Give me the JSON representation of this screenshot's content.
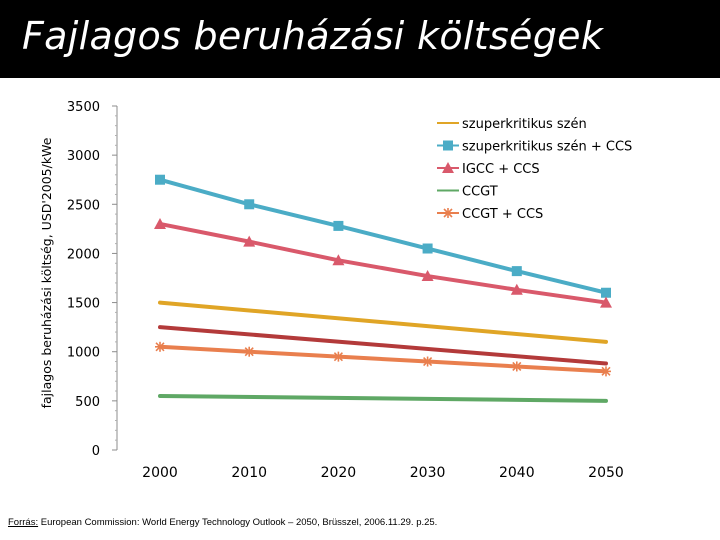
{
  "title": "Fajlagos beruházási költségek",
  "source": {
    "label": "Forrás:",
    "text": " European Commission: World Energy Technology Outlook – 2050, Brüsszel, 2006.11.29. p.25."
  },
  "chart_data": {
    "type": "line",
    "title": "",
    "xlabel": "",
    "ylabel": "fajlagos beruházási költség, USD'2005/kWe",
    "xlim": [
      2000,
      2050
    ],
    "ylim": [
      0,
      3500
    ],
    "x_ticks": [
      2000,
      2010,
      2020,
      2030,
      2040,
      2050
    ],
    "y_ticks": [
      0,
      500,
      1000,
      1500,
      2000,
      2500,
      3000,
      3500
    ],
    "grid": false,
    "legend_position": "top-right",
    "series": [
      {
        "name": "szuperkritikus szén",
        "color": "#e0a526",
        "marker": "none",
        "x": [
          2000,
          2050
        ],
        "values": [
          1500,
          1100
        ]
      },
      {
        "name": "szuperkritikus szén + CCS",
        "color": "#4bacc6",
        "marker": "square",
        "x": [
          2000,
          2010,
          2020,
          2030,
          2040,
          2050
        ],
        "values": [
          2750,
          2500,
          2280,
          2050,
          1820,
          1600
        ]
      },
      {
        "name": "IGCC + CCS",
        "color": "#d9596b",
        "marker": "triangle",
        "x": [
          2000,
          2010,
          2020,
          2030,
          2040,
          2050
        ],
        "values": [
          2300,
          2120,
          1930,
          1770,
          1630,
          1500
        ]
      },
      {
        "name": "CCGT",
        "color": "#5fa865",
        "marker": "none",
        "x": [
          2000,
          2050
        ],
        "values": [
          550,
          500
        ]
      },
      {
        "name": "CCGT + CCS",
        "color": "#e97f4e",
        "marker": "star",
        "x": [
          2000,
          2010,
          2020,
          2030,
          2040,
          2050
        ],
        "values": [
          1050,
          1000,
          950,
          900,
          850,
          800
        ]
      },
      {
        "name": "",
        "color": "#b33a3a",
        "marker": "none",
        "x": [
          2000,
          2050
        ],
        "values": [
          1250,
          880
        ]
      }
    ]
  }
}
